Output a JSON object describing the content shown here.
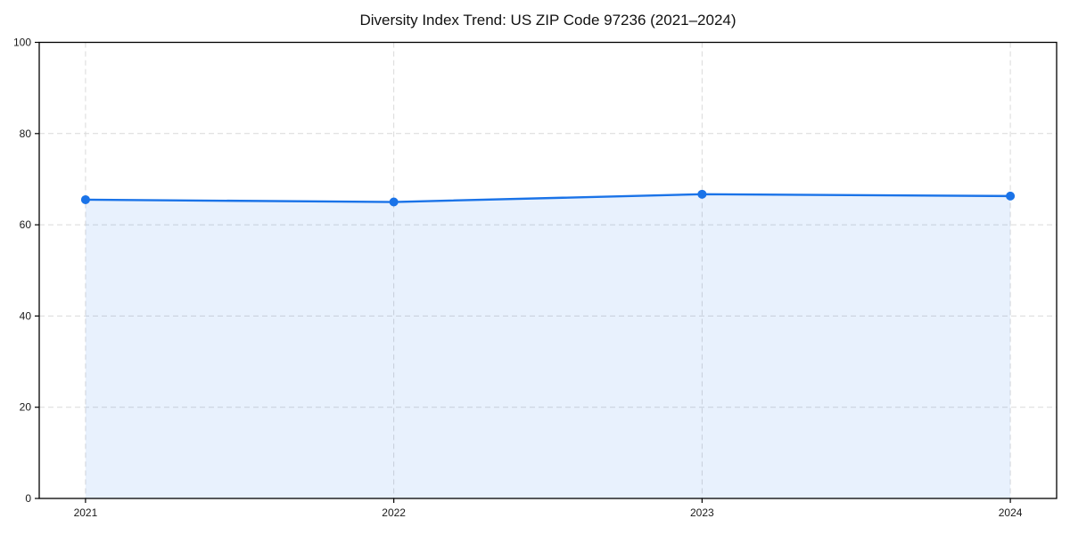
{
  "chart_data": {
    "type": "line",
    "title": "Diversity Index Trend: US ZIP Code 97236 (2021–2024)",
    "x": [
      2021,
      2022,
      2023,
      2024
    ],
    "categories": [
      "2021",
      "2022",
      "2023",
      "2024"
    ],
    "series": [
      {
        "name": "Diversity Index",
        "values": [
          65.5,
          65.0,
          66.7,
          66.3
        ]
      }
    ],
    "xlabel": "",
    "ylabel": "",
    "ylim": [
      0,
      100
    ],
    "yticks": [
      0,
      20,
      40,
      60,
      80,
      100
    ],
    "grid": "both-dashed",
    "legend_position": "none",
    "area_fill": true,
    "marker": "circle",
    "colors": {
      "line": "#1a73e8",
      "marker": "#1a73e8",
      "area_fill": "#1a73e8",
      "area_fill_opacity": 0.1,
      "grid": "#d9d9d9",
      "spine": "#000000",
      "tick_label": "#1a1a1a",
      "background": "#ffffff"
    }
  }
}
